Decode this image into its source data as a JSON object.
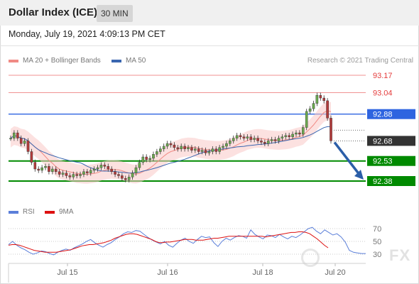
{
  "header": {
    "title": "Dollar Index (ICE)",
    "timeframe": "30 MIN"
  },
  "datetime": "Monday, July 19, 2021 4:09:13 PM CET",
  "legend": {
    "ma20_label": "MA 20 + Bollinger Bands",
    "ma20_color": "#f08a84",
    "ma50_label": "MA 50",
    "ma50_color": "#3a66b0",
    "copyright": "Research © 2021 Trading Central"
  },
  "rsi_legend": {
    "rsi_label": "RSI",
    "rsi_color": "#5b7fd9",
    "ma9_label": "9MA",
    "ma9_color": "#dd1111"
  },
  "watermark": "FX",
  "chart_data": {
    "type": "candlestick",
    "x_labels": [
      "Jul 15",
      "Jul 16",
      "Jul 18",
      "Jul 20"
    ],
    "price_range": [
      92.33,
      93.22
    ],
    "current_price": 92.68,
    "resistance_levels": [
      {
        "value": 93.17,
        "label": "93.17",
        "color": "#e43c3c",
        "style": "thin-red"
      },
      {
        "value": 93.04,
        "label": "93.04",
        "color": "#e43c3c",
        "style": "thin-red"
      },
      {
        "value": 92.88,
        "label": "92.88",
        "color": "#2e64e0",
        "style": "pivot-blue"
      }
    ],
    "current_label": {
      "value": 92.68,
      "label": "92.68",
      "color": "#333333"
    },
    "support_levels": [
      {
        "value": 92.53,
        "label": "92.53",
        "color": "#008a00"
      },
      {
        "value": 92.38,
        "label": "92.38",
        "color": "#008a00"
      }
    ],
    "forecast_arrow": {
      "from": 92.68,
      "to": 92.38,
      "direction": "down",
      "color": "#2b5ea8"
    },
    "close_prices": [
      92.7,
      92.74,
      92.7,
      92.66,
      92.68,
      92.6,
      92.52,
      92.47,
      92.46,
      92.48,
      92.49,
      92.45,
      92.47,
      92.45,
      92.43,
      92.44,
      92.42,
      92.41,
      92.43,
      92.42,
      92.43,
      92.45,
      92.44,
      92.46,
      92.47,
      92.48,
      92.5,
      92.49,
      92.47,
      92.45,
      92.43,
      92.42,
      92.4,
      92.39,
      92.41,
      92.44,
      92.48,
      92.52,
      92.56,
      92.54,
      92.55,
      92.58,
      92.6,
      92.62,
      92.64,
      92.66,
      92.65,
      92.63,
      92.62,
      92.64,
      92.62,
      92.63,
      92.61,
      92.62,
      92.6,
      92.61,
      92.59,
      92.6,
      92.62,
      92.6,
      92.63,
      92.64,
      92.66,
      92.68,
      92.7,
      92.72,
      92.71,
      92.7,
      92.71,
      92.69,
      92.7,
      92.68,
      92.67,
      92.66,
      92.68,
      92.69,
      92.68,
      92.7,
      92.71,
      92.72,
      92.71,
      92.73,
      92.74,
      92.73,
      92.78,
      92.9,
      92.92,
      92.96,
      93.02,
      93.0,
      92.98,
      92.85,
      92.68
    ],
    "rsi": {
      "levels": [
        70,
        50,
        30
      ],
      "range": [
        20,
        80
      ],
      "rsi_values": [
        45,
        50,
        44,
        40,
        37,
        33,
        30,
        32,
        35,
        34,
        31,
        29,
        33,
        36,
        38,
        36,
        40,
        43,
        46,
        50,
        53,
        48,
        44,
        41,
        45,
        48,
        53,
        57,
        62,
        65,
        64,
        67,
        66,
        61,
        56,
        52,
        49,
        46,
        50,
        44,
        41,
        47,
        52,
        55,
        50,
        47,
        53,
        58,
        56,
        57,
        48,
        42,
        50,
        55,
        52,
        56,
        59,
        58,
        55,
        68,
        61,
        57,
        54,
        60,
        59,
        56,
        61,
        57,
        54,
        58,
        56,
        60,
        65,
        70,
        72,
        66,
        62,
        68,
        64,
        60,
        62,
        57,
        49,
        36,
        33,
        32,
        31,
        31
      ],
      "ma9_values": [
        44,
        45,
        45,
        44,
        42,
        40,
        38,
        36,
        35,
        34,
        33,
        33,
        33,
        33,
        34,
        35,
        36,
        37,
        39,
        41,
        43,
        44,
        45,
        45,
        46,
        47,
        48,
        50,
        52,
        55,
        57,
        59,
        61,
        62,
        62,
        61,
        59,
        57,
        55,
        53,
        50,
        48,
        48,
        49,
        49,
        50,
        51,
        52,
        53,
        53,
        53,
        52,
        52,
        52,
        53,
        54,
        55,
        55,
        56,
        57,
        58,
        58,
        58,
        58,
        58,
        58,
        58,
        58,
        58,
        58,
        57,
        58,
        59,
        60,
        61,
        62,
        63,
        64,
        64,
        65,
        65,
        64,
        62,
        58,
        54,
        49,
        44,
        40
      ]
    }
  }
}
